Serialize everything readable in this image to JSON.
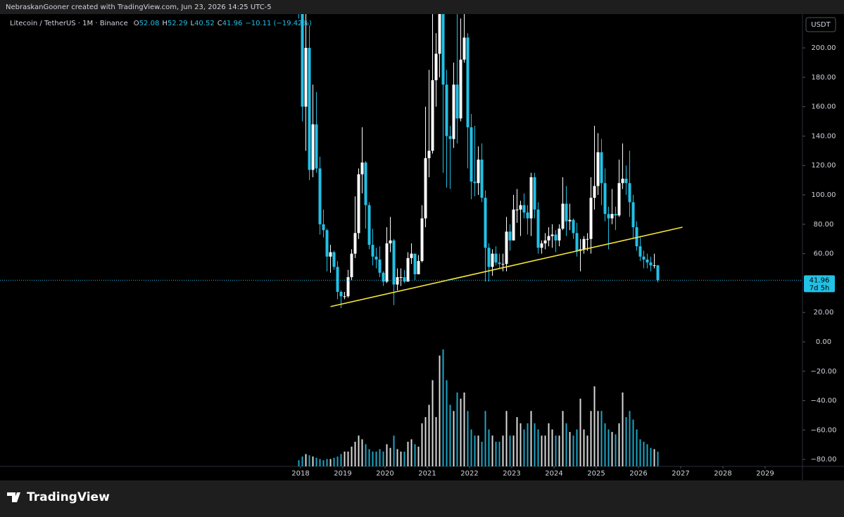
{
  "header": "NebraskanGooner created with TradingView.com, Jun 23, 2026 14:25 UTC-5",
  "footer": {
    "brand": "TradingView"
  },
  "chart_data": {
    "type": "candlestick",
    "symbol": "Litecoin / TetherUS · 1M · Binance",
    "legend_prefixes": [
      "O",
      "H",
      "L",
      "C"
    ],
    "change": "−10.11 (−19.42%)",
    "currency": "USDT",
    "countdown": "7d 5h",
    "up_color": "#ffffff",
    "down_color": "#22c1e6",
    "xlim": [
      2010.883,
      2029.883
    ],
    "xticks": [
      2018,
      2019,
      2020,
      2021,
      2022,
      2023,
      2024,
      2025,
      2026,
      2027,
      2028,
      2029
    ],
    "ylim": [
      -84.7,
      223.0
    ],
    "yticks": [
      {
        "value": -80,
        "label": "−80.00"
      },
      {
        "value": -60,
        "label": "−60.00"
      },
      {
        "value": -40,
        "label": "−40.00"
      },
      {
        "value": -20,
        "label": "−20.00"
      },
      {
        "value": 0,
        "label": "0.00"
      },
      {
        "value": 20,
        "label": "20.00"
      },
      {
        "value": 60,
        "label": "60.00"
      },
      {
        "value": 80,
        "label": "80.00"
      },
      {
        "value": 100,
        "label": "100.00"
      },
      {
        "value": 120,
        "label": "120.00"
      },
      {
        "value": 140,
        "label": "140.00"
      },
      {
        "value": 160,
        "label": "160.00"
      },
      {
        "value": 180,
        "label": "180.00"
      },
      {
        "value": 200,
        "label": "200.00"
      }
    ],
    "x": [
      "2017-12",
      "2018-01",
      "2018-02",
      "2018-03",
      "2018-04",
      "2018-05",
      "2018-06",
      "2018-07",
      "2018-08",
      "2018-09",
      "2018-10",
      "2018-11",
      "2018-12",
      "2019-01",
      "2019-02",
      "2019-03",
      "2019-04",
      "2019-05",
      "2019-06",
      "2019-07",
      "2019-08",
      "2019-09",
      "2019-10",
      "2019-11",
      "2019-12",
      "2020-01",
      "2020-02",
      "2020-03",
      "2020-04",
      "2020-05",
      "2020-06",
      "2020-07",
      "2020-08",
      "2020-09",
      "2020-10",
      "2020-11",
      "2020-12",
      "2021-01",
      "2021-02",
      "2021-03",
      "2021-04",
      "2021-05",
      "2021-06",
      "2021-07",
      "2021-08",
      "2021-09",
      "2021-10",
      "2021-11",
      "2021-12",
      "2022-01",
      "2022-02",
      "2022-03",
      "2022-04",
      "2022-05",
      "2022-06",
      "2022-07",
      "2022-08",
      "2022-09",
      "2022-10",
      "2022-11",
      "2022-12",
      "2023-01",
      "2023-02",
      "2023-03",
      "2023-04",
      "2023-05",
      "2023-06",
      "2023-07",
      "2023-08",
      "2023-09",
      "2023-10",
      "2023-11",
      "2023-12",
      "2024-01",
      "2024-02",
      "2024-03",
      "2024-04",
      "2024-05",
      "2024-06",
      "2024-07",
      "2024-08",
      "2024-09",
      "2024-10",
      "2024-11",
      "2024-12",
      "2025-01",
      "2025-02",
      "2025-03",
      "2025-04",
      "2025-05",
      "2025-06",
      "2025-07",
      "2025-08",
      "2025-09",
      "2025-10",
      "2025-11",
      "2025-12",
      "2026-01",
      "2026-02",
      "2026-03",
      "2026-04",
      "2026-05",
      "2026-06"
    ],
    "ohlc": [
      [
        300,
        370,
        220,
        228
      ],
      [
        228,
        240,
        150,
        160
      ],
      [
        160,
        235,
        130,
        200
      ],
      [
        200,
        215,
        110,
        117
      ],
      [
        117,
        175,
        112,
        148
      ],
      [
        148,
        170,
        115,
        118
      ],
      [
        118,
        126,
        73,
        80
      ],
      [
        80,
        90,
        71,
        76
      ],
      [
        76,
        77,
        48,
        58
      ],
      [
        58,
        66,
        47,
        61
      ],
      [
        61,
        62,
        49,
        51
      ],
      [
        51,
        55,
        29,
        34
      ],
      [
        34,
        35,
        23,
        31
      ],
      [
        31,
        34,
        29,
        31
      ],
      [
        31,
        49,
        30,
        44
      ],
      [
        44,
        63,
        42,
        60
      ],
      [
        60,
        99,
        57,
        74
      ],
      [
        74,
        118,
        70,
        114
      ],
      [
        114,
        146,
        101,
        122
      ],
      [
        122,
        123,
        77,
        93
      ],
      [
        93,
        95,
        63,
        66
      ],
      [
        66,
        77,
        52,
        58
      ],
      [
        58,
        64,
        50,
        56
      ],
      [
        56,
        65,
        44,
        47
      ],
      [
        47,
        48,
        38,
        41
      ],
      [
        41,
        78,
        40,
        67
      ],
      [
        67,
        85,
        61,
        69
      ],
      [
        69,
        70,
        25,
        39
      ],
      [
        39,
        50,
        35,
        44
      ],
      [
        44,
        50,
        38,
        44
      ],
      [
        44,
        49,
        40,
        41
      ],
      [
        41,
        61,
        41,
        57
      ],
      [
        57,
        67,
        53,
        60
      ],
      [
        60,
        60,
        42,
        46
      ],
      [
        46,
        59,
        46,
        55
      ],
      [
        55,
        93,
        54,
        84
      ],
      [
        84,
        160,
        78,
        125
      ],
      [
        125,
        185,
        112,
        130
      ],
      [
        130,
        240,
        128,
        178
      ],
      [
        178,
        210,
        160,
        196
      ],
      [
        196,
        412,
        180,
        270
      ],
      [
        270,
        413,
        115,
        175
      ],
      [
        175,
        185,
        105,
        140
      ],
      [
        140,
        147,
        104,
        138
      ],
      [
        138,
        190,
        132,
        175
      ],
      [
        175,
        229,
        135,
        152
      ],
      [
        152,
        220,
        150,
        192
      ],
      [
        192,
        295,
        190,
        207
      ],
      [
        207,
        210,
        118,
        146
      ],
      [
        146,
        155,
        97,
        109
      ],
      [
        109,
        147,
        99,
        108
      ],
      [
        108,
        133,
        100,
        124
      ],
      [
        124,
        135,
        95,
        98
      ],
      [
        98,
        103,
        41,
        64
      ],
      [
        64,
        67,
        41,
        51
      ],
      [
        51,
        63,
        45,
        60
      ],
      [
        60,
        65,
        52,
        54
      ],
      [
        54,
        60,
        50,
        53
      ],
      [
        53,
        60,
        48,
        53
      ],
      [
        53,
        85,
        48,
        75
      ],
      [
        75,
        80,
        62,
        69
      ],
      [
        69,
        100,
        69,
        90
      ],
      [
        90,
        104,
        81,
        90
      ],
      [
        90,
        96,
        72,
        93
      ],
      [
        93,
        101,
        84,
        88
      ],
      [
        88,
        93,
        73,
        84
      ],
      [
        84,
        115,
        72,
        112
      ],
      [
        112,
        115,
        84,
        90
      ],
      [
        90,
        95,
        60,
        64
      ],
      [
        64,
        69,
        60,
        67
      ],
      [
        67,
        74,
        63,
        69
      ],
      [
        69,
        78,
        65,
        72
      ],
      [
        72,
        80,
        64,
        73
      ],
      [
        73,
        76,
        61,
        69
      ],
      [
        69,
        80,
        65,
        77
      ],
      [
        77,
        112,
        76,
        94
      ],
      [
        94,
        106,
        72,
        82
      ],
      [
        82,
        94,
        76,
        83
      ],
      [
        83,
        84,
        70,
        74
      ],
      [
        74,
        81,
        58,
        62
      ],
      [
        62,
        70,
        48,
        63
      ],
      [
        63,
        72,
        60,
        70
      ],
      [
        70,
        74,
        62,
        70
      ],
      [
        70,
        112,
        60,
        98
      ],
      [
        98,
        147,
        90,
        106
      ],
      [
        106,
        142,
        100,
        129
      ],
      [
        129,
        138,
        93,
        108
      ],
      [
        108,
        118,
        82,
        87
      ],
      [
        87,
        92,
        63,
        84
      ],
      [
        84,
        104,
        80,
        87
      ],
      [
        87,
        92,
        76,
        86
      ],
      [
        86,
        124,
        85,
        108
      ],
      [
        108,
        135,
        104,
        111
      ],
      [
        111,
        120,
        100,
        108
      ],
      [
        108,
        130,
        85,
        95
      ],
      [
        95,
        100,
        70,
        78
      ],
      [
        78,
        82,
        62,
        65
      ],
      [
        65,
        72,
        55,
        58
      ],
      [
        58,
        62,
        50,
        56
      ],
      [
        56,
        60,
        50,
        54
      ],
      [
        54,
        58,
        48,
        52
      ],
      [
        52,
        60,
        50,
        52.08
      ],
      [
        52.08,
        52.29,
        40.52,
        41.96
      ]
    ],
    "volume": {
      "ylim": [
        0,
        100
      ],
      "values": [
        5,
        8,
        10,
        9,
        8,
        7,
        6,
        5,
        6,
        6,
        7,
        8,
        10,
        12,
        12,
        16,
        20,
        25,
        22,
        18,
        14,
        12,
        12,
        14,
        12,
        18,
        15,
        25,
        14,
        12,
        12,
        20,
        22,
        18,
        16,
        35,
        40,
        50,
        70,
        40,
        90,
        95,
        70,
        50,
        45,
        60,
        55,
        60,
        45,
        30,
        25,
        25,
        20,
        45,
        30,
        25,
        20,
        20,
        25,
        45,
        25,
        25,
        40,
        35,
        30,
        35,
        45,
        35,
        30,
        25,
        25,
        35,
        30,
        25,
        25,
        45,
        35,
        28,
        25,
        30,
        55,
        30,
        25,
        45,
        65,
        45,
        45,
        35,
        30,
        28,
        26,
        35,
        60,
        40,
        45,
        38,
        30,
        22,
        20,
        18,
        15,
        14,
        12
      ]
    },
    "trendline": {
      "color": "#f5e63c",
      "x": [
        "2018-09",
        "2027-01"
      ],
      "values": [
        24,
        78
      ]
    }
  }
}
